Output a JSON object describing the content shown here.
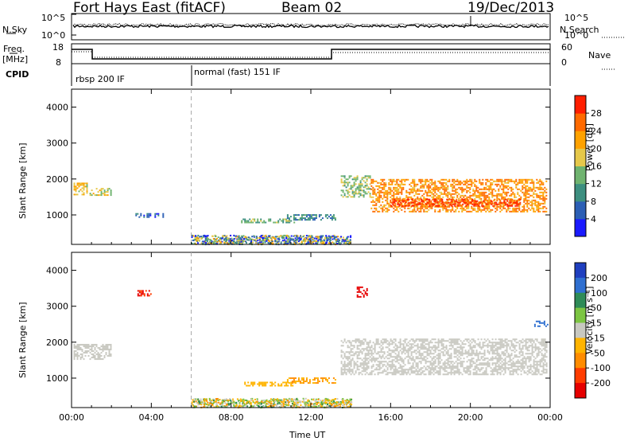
{
  "header": {
    "station": "Fort Hays East (fitACF)",
    "beam": "Beam 02",
    "date": "19/Dec/2013"
  },
  "top_panels": {
    "nsky_label": "N.Sky",
    "nsearch_label": "N.Search",
    "noise_ticks": [
      "10^5",
      "10^0"
    ],
    "freq_label": "Freq.",
    "freq_unit": "[MHz]",
    "freq_ticks": [
      "18",
      "8"
    ],
    "nave_label": "Nave",
    "nave_ticks": [
      "60",
      "0"
    ],
    "cpid_label": "CPID",
    "cpid_segments": [
      "rbsp 200 IF",
      "normal (fast) 151 IF"
    ]
  },
  "colors": {
    "power_scale": [
      "#1a1aff",
      "#2c5fb5",
      "#3d8f80",
      "#6fb36f",
      "#e6c84a",
      "#ffa200",
      "#ff6a00",
      "#ff1e00"
    ],
    "velocity_scale": [
      "#1f3fbf",
      "#2f6fd0",
      "#2e8b57",
      "#7cc542",
      "#c8c8c0",
      "#ffb400",
      "#ff8c00",
      "#ff3c00",
      "#e60000"
    ]
  },
  "chart_data": [
    {
      "type": "heatmap",
      "title": "",
      "xlabel": "Time UT",
      "ylabel": "Slant Range [km]",
      "x_ticks": [
        "00:00",
        "04:00",
        "08:00",
        "12:00",
        "16:00",
        "20:00",
        "00:00"
      ],
      "xlim_hours": [
        0,
        24
      ],
      "y_ticks": [
        1000,
        2000,
        3000,
        4000
      ],
      "ylim_km": [
        180,
        4500
      ],
      "colorbar": {
        "label": "Power [dB]",
        "ticks": [
          4,
          8,
          12,
          16,
          20,
          24,
          28
        ],
        "range": [
          0,
          30
        ]
      },
      "mode_change_hour": 6,
      "echo_regions": [
        {
          "t0": 0.1,
          "t1": 0.8,
          "r0": 1550,
          "r1": 1900,
          "value": 18
        },
        {
          "t0": 0.9,
          "t1": 2.0,
          "r0": 1550,
          "r1": 1750,
          "value": 16
        },
        {
          "t0": 3.2,
          "t1": 4.6,
          "r0": 950,
          "r1": 1050,
          "value": 6
        },
        {
          "t0": 8.5,
          "t1": 11.2,
          "r0": 800,
          "r1": 900,
          "value": 12
        },
        {
          "t0": 10.8,
          "t1": 13.2,
          "r0": 880,
          "r1": 1020,
          "value": 8
        },
        {
          "t0": 13.5,
          "t1": 15.0,
          "r0": 1500,
          "r1": 2100,
          "value": 14
        },
        {
          "t0": 15.0,
          "t1": 23.8,
          "r0": 1100,
          "r1": 2000,
          "value": 22
        },
        {
          "t0": 16.0,
          "t1": 22.5,
          "r0": 1250,
          "r1": 1450,
          "value": 27
        }
      ]
    },
    {
      "type": "heatmap",
      "title": "",
      "xlabel": "Time UT",
      "ylabel": "Slant Range [km]",
      "x_ticks": [
        "00:00",
        "04:00",
        "08:00",
        "12:00",
        "16:00",
        "20:00",
        "00:00"
      ],
      "xlim_hours": [
        0,
        24
      ],
      "y_ticks": [
        1000,
        2000,
        3000,
        4000
      ],
      "ylim_km": [
        180,
        4500
      ],
      "colorbar": {
        "label": "Velocity [m s⁻¹]",
        "ticks": [
          200,
          100,
          50,
          15,
          -15,
          -50,
          -100,
          -200
        ],
        "range": [
          -250,
          250
        ]
      },
      "mode_change_hour": 6,
      "echo_regions": [
        {
          "t0": 0.1,
          "t1": 2.0,
          "r0": 1550,
          "r1": 1950,
          "value": 0
        },
        {
          "t0": 3.3,
          "t1": 4.0,
          "r0": 3300,
          "r1": 3450,
          "value": -200
        },
        {
          "t0": 8.5,
          "t1": 11.2,
          "r0": 780,
          "r1": 900,
          "value": -40
        },
        {
          "t0": 10.8,
          "t1": 13.2,
          "r0": 880,
          "r1": 1020,
          "value": -50
        },
        {
          "t0": 13.5,
          "t1": 23.8,
          "r0": 1100,
          "r1": 2100,
          "value": 0
        },
        {
          "t0": 14.3,
          "t1": 14.8,
          "r0": 3250,
          "r1": 3550,
          "value": -220
        },
        {
          "t0": 23.2,
          "t1": 23.9,
          "r0": 2450,
          "r1": 2600,
          "value": 150
        }
      ]
    }
  ]
}
